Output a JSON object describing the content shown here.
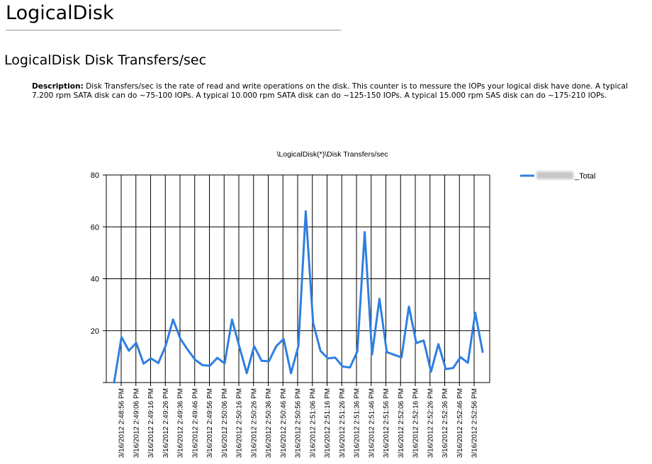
{
  "page": {
    "title": "LogicalDisk",
    "section_title": "LogicalDisk Disk Transfers/sec",
    "description_label": "Description:",
    "description_text": "Disk Transfers/sec is the rate of read and write operations on the disk. This counter is to messure the IOPs your logical disk have done. A typical 7.200 rpm SATA disk can do ~75-100 IOPs. A typical 10.000 rpm SATA disk can do ~125-150 IOPs. A typical 15.000 rpm SAS disk can do ~175-210 IOPs."
  },
  "chart_data": {
    "type": "line",
    "title": "\\LogicalDisk(*)\\Disk Transfers/sec",
    "xlabel": "",
    "ylabel": "",
    "ylim": [
      0,
      80
    ],
    "yticks": [
      20,
      40,
      60,
      80
    ],
    "grid": true,
    "legend_position": "top-right",
    "line_color": "#2f7fe0",
    "x_tick_labels": [
      "3/16/2012 2:48:56 PM",
      "3/16/2012 2:49:06 PM",
      "3/16/2012 2:49:16 PM",
      "3/16/2012 2:49:26 PM",
      "3/16/2012 2:49:36 PM",
      "3/16/2012 2:49:46 PM",
      "3/16/2012 2:49:56 PM",
      "3/16/2012 2:50:06 PM",
      "3/16/2012 2:50:16 PM",
      "3/16/2012 2:50:26 PM",
      "3/16/2012 2:50:36 PM",
      "3/16/2012 2:50:46 PM",
      "3/16/2012 2:50:56 PM",
      "3/16/2012 2:51:06 PM",
      "3/16/2012 2:51:16 PM",
      "3/16/2012 2:51:26 PM",
      "3/16/2012 2:51:36 PM",
      "3/16/2012 2:51:46 PM",
      "3/16/2012 2:51:56 PM",
      "3/16/2012 2:52:06 PM",
      "3/16/2012 2:52:16 PM",
      "3/16/2012 2:52:26 PM",
      "3/16/2012 2:52:36 PM",
      "3/16/2012 2:52:46 PM",
      "3/16/2012 2:52:56 PM"
    ],
    "series": [
      {
        "name": "_Total",
        "values": [
          0,
          17.5,
          12.3,
          15.3,
          7.3,
          9.3,
          7.5,
          14.2,
          24.3,
          16.8,
          12.6,
          8.8,
          6.7,
          6.5,
          9.5,
          7.4,
          24.3,
          13.8,
          3.6,
          14,
          8.4,
          8.2,
          14,
          16.8,
          3.6,
          14,
          66,
          23,
          12.2,
          9.3,
          9.6,
          6.2,
          5.8,
          12,
          58,
          10.8,
          32.3,
          11.7,
          10.7,
          9.7,
          29.3,
          15.2,
          16.2,
          4.2,
          14.8,
          5.2,
          5.6,
          9.8,
          7.6,
          26.9,
          11.8
        ]
      }
    ]
  }
}
